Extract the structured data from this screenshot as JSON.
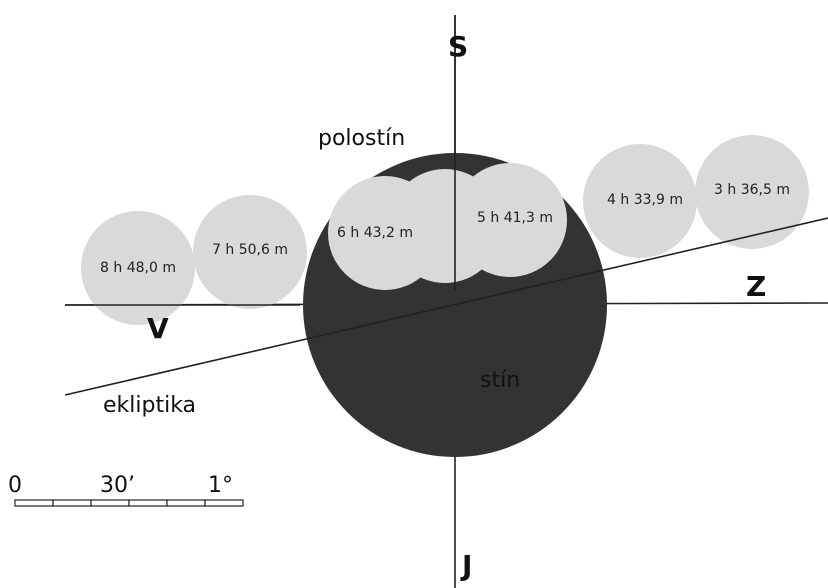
{
  "directions": {
    "north": "S",
    "south": "J",
    "east": "V",
    "west": "Z"
  },
  "labels": {
    "penumbra": "polostín",
    "umbra": "stín",
    "ecliptic": "ekliptika"
  },
  "moons": [
    {
      "time": "8 h 48,0 m"
    },
    {
      "time": "7 h 50,6 m"
    },
    {
      "time": "6 h 43,2 m"
    },
    {
      "time": "5 h 41,3 m"
    },
    {
      "time": "4 h 33,9 m"
    },
    {
      "time": "3 h 36,5 m"
    }
  ],
  "scale": [
    "0",
    "30’",
    "1°"
  ]
}
